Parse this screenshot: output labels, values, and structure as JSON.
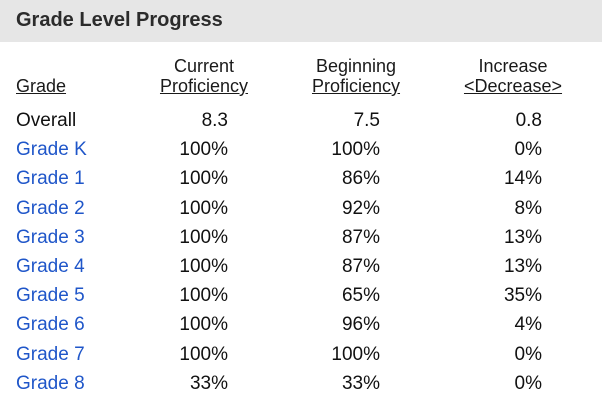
{
  "panel": {
    "title": "Grade Level Progress"
  },
  "columns": {
    "grade": "Grade",
    "current": [
      "Current",
      "Proficiency"
    ],
    "beginning": [
      "Beginning",
      "Proficiency"
    ],
    "increase": [
      "Increase",
      "<Decrease>"
    ]
  },
  "rows": [
    {
      "grade": "Overall",
      "current": "8.3",
      "beginning": "7.5",
      "increase": "0.8"
    },
    {
      "grade": "Grade K",
      "current": "100%",
      "beginning": "100%",
      "increase": "0%"
    },
    {
      "grade": "Grade 1",
      "current": "100%",
      "beginning": "86%",
      "increase": "14%"
    },
    {
      "grade": "Grade 2",
      "current": "100%",
      "beginning": "92%",
      "increase": "8%"
    },
    {
      "grade": "Grade 3",
      "current": "100%",
      "beginning": "87%",
      "increase": "13%"
    },
    {
      "grade": "Grade 4",
      "current": "100%",
      "beginning": "87%",
      "increase": "13%"
    },
    {
      "grade": "Grade 5",
      "current": "100%",
      "beginning": "65%",
      "increase": "35%"
    },
    {
      "grade": "Grade 6",
      "current": "100%",
      "beginning": "96%",
      "increase": "4%"
    },
    {
      "grade": "Grade 7",
      "current": "100%",
      "beginning": "100%",
      "increase": "0%"
    },
    {
      "grade": "Grade 8",
      "current": "33%",
      "beginning": "33%",
      "increase": "0%"
    }
  ],
  "colors": {
    "link": "#1f56c9",
    "header_bg": "#e6e6e6",
    "text": "#111111"
  }
}
